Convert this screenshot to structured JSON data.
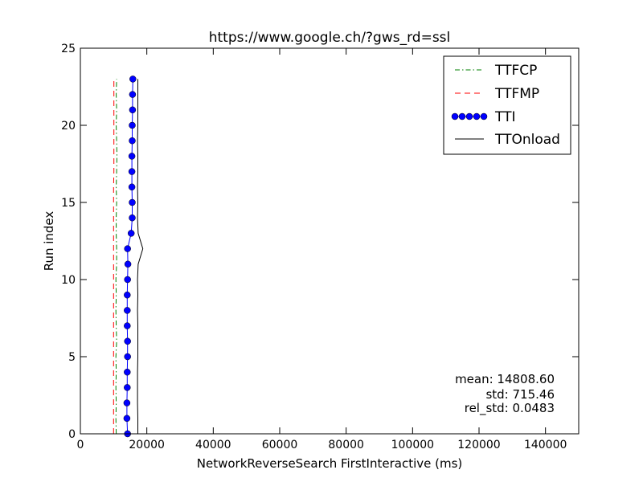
{
  "chart_data": {
    "type": "line",
    "title": "https://www.google.ch/?gws_rd=ssl",
    "xlabel": "NetworkReverseSearch FirstInteractive (ms)",
    "ylabel": "Run index",
    "xlim": [
      0,
      150000
    ],
    "ylim": [
      0,
      25
    ],
    "xticks": [
      0,
      20000,
      40000,
      60000,
      80000,
      100000,
      120000,
      140000
    ],
    "xtick_labels": [
      "0",
      "20000",
      "40000",
      "60000",
      "80000",
      "100000",
      "120000",
      "140000"
    ],
    "yticks": [
      0,
      5,
      10,
      15,
      20,
      25
    ],
    "ytick_labels": [
      "0",
      "5",
      "10",
      "15",
      "20",
      "25"
    ],
    "grid": false,
    "legend": "top-right",
    "series": [
      {
        "name": "TTFCP",
        "color": "#008000",
        "style": "dashdot",
        "x": [
          10800,
          10700,
          10800,
          10700,
          10800,
          10700,
          10900,
          10800,
          10700,
          10800,
          10700,
          10900,
          10900,
          10800,
          10800,
          10900,
          10800,
          10900,
          11000,
          10900,
          10800,
          10900,
          10800,
          10900
        ],
        "y": [
          0,
          1,
          2,
          3,
          4,
          5,
          6,
          7,
          8,
          9,
          10,
          11,
          12,
          13,
          14,
          15,
          16,
          17,
          18,
          19,
          20,
          21,
          22,
          23
        ]
      },
      {
        "name": "TTFMP",
        "color": "#ff0000",
        "style": "dashed",
        "x": [
          10000,
          10000,
          10000,
          10000,
          10000,
          10000,
          10000,
          10000,
          10000,
          10000,
          10000,
          10000,
          10000,
          10000,
          10000,
          10000,
          10000,
          10100,
          10100,
          10100,
          10100,
          10100,
          10100,
          10100
        ],
        "y": [
          0,
          1,
          2,
          3,
          4,
          5,
          6,
          7,
          8,
          9,
          10,
          11,
          12,
          13,
          14,
          15,
          16,
          17,
          18,
          19,
          20,
          21,
          22,
          23
        ]
      },
      {
        "name": "TTI",
        "color": "#0000ff",
        "style": "solid-markers",
        "x": [
          14200,
          14000,
          14000,
          14100,
          14100,
          14200,
          14200,
          14100,
          14100,
          14100,
          14200,
          14300,
          14200,
          15300,
          15600,
          15600,
          15500,
          15500,
          15500,
          15600,
          15600,
          15700,
          15700,
          15800
        ],
        "y": [
          0,
          1,
          2,
          3,
          4,
          5,
          6,
          7,
          8,
          9,
          10,
          11,
          12,
          13,
          14,
          15,
          16,
          17,
          18,
          19,
          20,
          21,
          22,
          23
        ]
      },
      {
        "name": "TTOnload",
        "color": "#000000",
        "style": "solid",
        "x": [
          17300,
          17300,
          17200,
          17200,
          17200,
          17300,
          17300,
          17300,
          17200,
          17300,
          17200,
          17400,
          18800,
          17400,
          17200,
          17300,
          17200,
          17300,
          17300,
          17200,
          17300,
          17300,
          17300,
          17300
        ],
        "y": [
          0,
          1,
          2,
          3,
          4,
          5,
          6,
          7,
          8,
          9,
          10,
          11,
          12,
          13,
          14,
          15,
          16,
          17,
          18,
          19,
          20,
          21,
          22,
          23
        ]
      }
    ],
    "annotations": [
      "mean: 14808.60",
      "std: 715.46",
      "rel_std: 0.0483"
    ]
  }
}
